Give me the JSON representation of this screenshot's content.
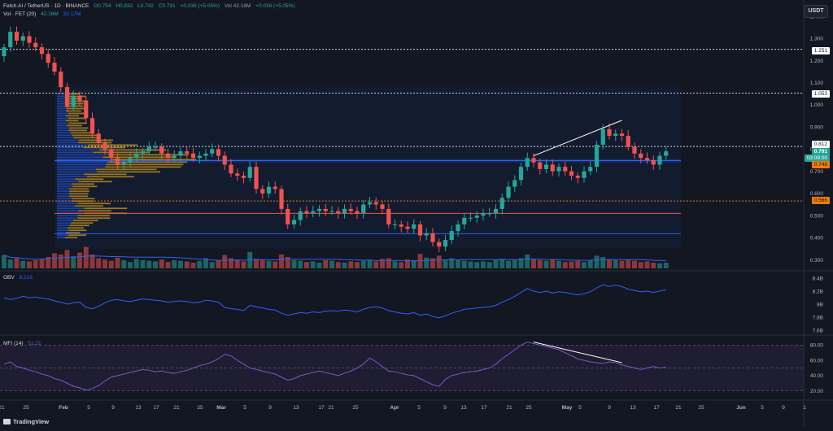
{
  "header": {
    "symbol": "Fetch.AI / TetherUS · 1D · BINANCE",
    "open": "O0.754",
    "high": "H0.832",
    "low": "L0.742",
    "close": "C0.791",
    "change": "+0.038 (+5.05%)",
    "vol_label": "Vol 42.16M",
    "vol_change": "+0.038 (+5.05%)",
    "vol_fet": "Vol · FET (20)",
    "vol_fet_v1": "42.16M",
    "vol_fet_v2": "32.17M",
    "obv": "OBV",
    "obv_val": "8.218",
    "mfi": "MFI (14)",
    "mfi_val": "51.21"
  },
  "currency_button": "USDT",
  "branding": "TradingView",
  "price_badges": {
    "b1251": "1.251",
    "b1053": "1.053",
    "b0812": "0.812",
    "last": "0.791",
    "countdown": "03:09:00",
    "b0748": "0.748",
    "b0566": "0.566"
  },
  "colors": {
    "up": "#26a69a",
    "down": "#ef5350",
    "obv": "#2962ff",
    "mfi": "#7e57c2",
    "poc": "#2962ff",
    "vp": "#e6a817"
  },
  "chart_data": [
    {
      "type": "candlestick",
      "title": "Fetch.AI / TetherUS · 1D · BINANCE",
      "y_ticks": [
        1.4,
        1.3,
        1.2,
        1.1,
        1.0,
        0.9,
        0.8,
        0.7,
        0.6,
        0.5,
        0.4,
        0.3
      ],
      "x_ticks": [
        "21",
        "25",
        "Feb",
        "5",
        "9",
        "13",
        "17",
        "21",
        "25",
        "Mar",
        "5",
        "9",
        "13",
        "17",
        "21",
        "25",
        "Apr",
        "5",
        "9",
        "13",
        "17",
        "21",
        "25",
        "May",
        "5",
        "9",
        "13",
        "17",
        "21",
        "25",
        "Jun",
        "5",
        "9",
        "1"
      ],
      "horizontal_levels": [
        1.251,
        1.053,
        0.812,
        0.748,
        0.566,
        0.51,
        0.418
      ],
      "close": [
        1.26,
        1.33,
        1.29,
        1.31,
        1.28,
        1.26,
        1.23,
        1.19,
        1.15,
        1.08,
        0.99,
        1.04,
        1.02,
        0.94,
        0.87,
        0.83,
        0.8,
        0.76,
        0.73,
        0.74,
        0.76,
        0.78,
        0.79,
        0.81,
        0.81,
        0.78,
        0.76,
        0.77,
        0.79,
        0.78,
        0.76,
        0.77,
        0.78,
        0.8,
        0.77,
        0.73,
        0.69,
        0.68,
        0.67,
        0.72,
        0.62,
        0.6,
        0.63,
        0.62,
        0.53,
        0.46,
        0.48,
        0.52,
        0.51,
        0.52,
        0.53,
        0.52,
        0.52,
        0.51,
        0.53,
        0.52,
        0.51,
        0.55,
        0.56,
        0.55,
        0.53,
        0.46,
        0.46,
        0.45,
        0.44,
        0.46,
        0.41,
        0.42,
        0.38,
        0.36,
        0.39,
        0.43,
        0.46,
        0.49,
        0.49,
        0.5,
        0.51,
        0.51,
        0.53,
        0.58,
        0.63,
        0.66,
        0.72,
        0.76,
        0.74,
        0.71,
        0.73,
        0.7,
        0.72,
        0.7,
        0.68,
        0.67,
        0.7,
        0.72,
        0.82,
        0.89,
        0.86,
        0.87,
        0.86,
        0.81,
        0.78,
        0.76,
        0.75,
        0.73,
        0.77,
        0.79
      ],
      "volume": [
        2.1,
        1.4,
        1.6,
        1.2,
        1.1,
        1.3,
        1.5,
        1.8,
        2.4,
        2.2,
        2.9,
        1.9,
        2.5,
        3.4,
        2.2,
        1.6,
        1.4,
        1.2,
        1.7,
        1.3,
        1.0,
        1.5,
        1.3,
        1.2,
        1.1,
        1.4,
        1.0,
        1.3,
        1.2,
        1.1,
        0.9,
        1.2,
        1.6,
        1.0,
        1.3,
        2.1,
        1.6,
        1.4,
        1.1,
        2.6,
        1.5,
        1.3,
        1.2,
        1.1,
        2.2,
        1.8,
        1.3,
        1.2,
        1.0,
        1.1,
        0.9,
        1.3,
        1.2,
        1.0,
        0.9,
        1.1,
        1.0,
        1.2,
        1.3,
        1.1,
        1.5,
        1.6,
        1.1,
        1.0,
        1.4,
        1.3,
        2.3,
        1.7,
        1.6,
        2.0,
        1.4,
        1.6,
        1.3,
        1.2,
        1.1,
        1.0,
        1.1,
        1.0,
        1.3,
        1.5,
        1.2,
        1.4,
        1.6,
        2.2,
        1.5,
        1.3,
        1.2,
        1.4,
        1.2,
        1.0,
        1.1,
        1.2,
        1.0,
        1.3,
        2.0,
        1.8,
        1.4,
        1.3,
        1.2,
        1.4,
        1.2,
        1.0,
        1.1,
        0.9,
        0.8,
        0.9
      ]
    },
    {
      "type": "line",
      "name": "OBV",
      "y_ticks": [
        "8.4B",
        "8.2B",
        "8B",
        "7.8B",
        "7.6B"
      ],
      "values": [
        8.1,
        8.07,
        8.09,
        8.12,
        8.1,
        8.11,
        8.09,
        8.08,
        8.05,
        8.03,
        8.0,
        8.02,
        8.03,
        7.95,
        7.93,
        7.97,
        8.02,
        8.06,
        8.07,
        8.05,
        8.04,
        8.06,
        8.08,
        8.07,
        8.06,
        8.05,
        8.03,
        8.04,
        8.05,
        8.04,
        8.02,
        8.03,
        8.06,
        8.05,
        8.03,
        7.95,
        7.93,
        7.92,
        7.9,
        7.98,
        7.96,
        7.94,
        7.92,
        7.91,
        7.86,
        7.83,
        7.85,
        7.87,
        7.86,
        7.88,
        7.87,
        7.89,
        7.9,
        7.89,
        7.91,
        7.9,
        7.88,
        7.92,
        7.95,
        7.96,
        7.94,
        7.9,
        7.88,
        7.86,
        7.85,
        7.87,
        7.83,
        7.85,
        7.81,
        7.79,
        7.82,
        7.86,
        7.89,
        7.92,
        7.93,
        7.94,
        7.95,
        7.96,
        7.98,
        8.03,
        8.07,
        8.12,
        8.18,
        8.24,
        8.2,
        8.18,
        8.2,
        8.17,
        8.19,
        8.18,
        8.16,
        8.14,
        8.16,
        8.19,
        8.25,
        8.3,
        8.27,
        8.29,
        8.27,
        8.23,
        8.21,
        8.19,
        8.2,
        8.18,
        8.2,
        8.22
      ]
    },
    {
      "type": "line",
      "name": "MFI (14)",
      "y_ticks": [
        80.0,
        60.0,
        40.0,
        20.0
      ],
      "values": [
        55,
        58,
        52,
        50,
        47,
        45,
        42,
        40,
        36,
        34,
        30,
        26,
        24,
        21,
        23,
        27,
        33,
        38,
        40,
        42,
        44,
        46,
        48,
        47,
        45,
        46,
        44,
        43,
        45,
        47,
        50,
        53,
        55,
        58,
        62,
        68,
        66,
        60,
        55,
        50,
        48,
        46,
        44,
        42,
        38,
        34,
        36,
        40,
        42,
        44,
        46,
        44,
        42,
        40,
        43,
        46,
        50,
        55,
        63,
        58,
        52,
        46,
        45,
        43,
        41,
        40,
        36,
        32,
        28,
        26,
        35,
        40,
        42,
        44,
        45,
        46,
        48,
        50,
        55,
        62,
        68,
        74,
        80,
        84,
        82,
        80,
        78,
        76,
        74,
        70,
        66,
        62,
        60,
        58,
        57,
        56,
        58,
        57,
        54,
        52,
        50,
        48,
        50,
        52,
        50,
        51
      ]
    }
  ]
}
